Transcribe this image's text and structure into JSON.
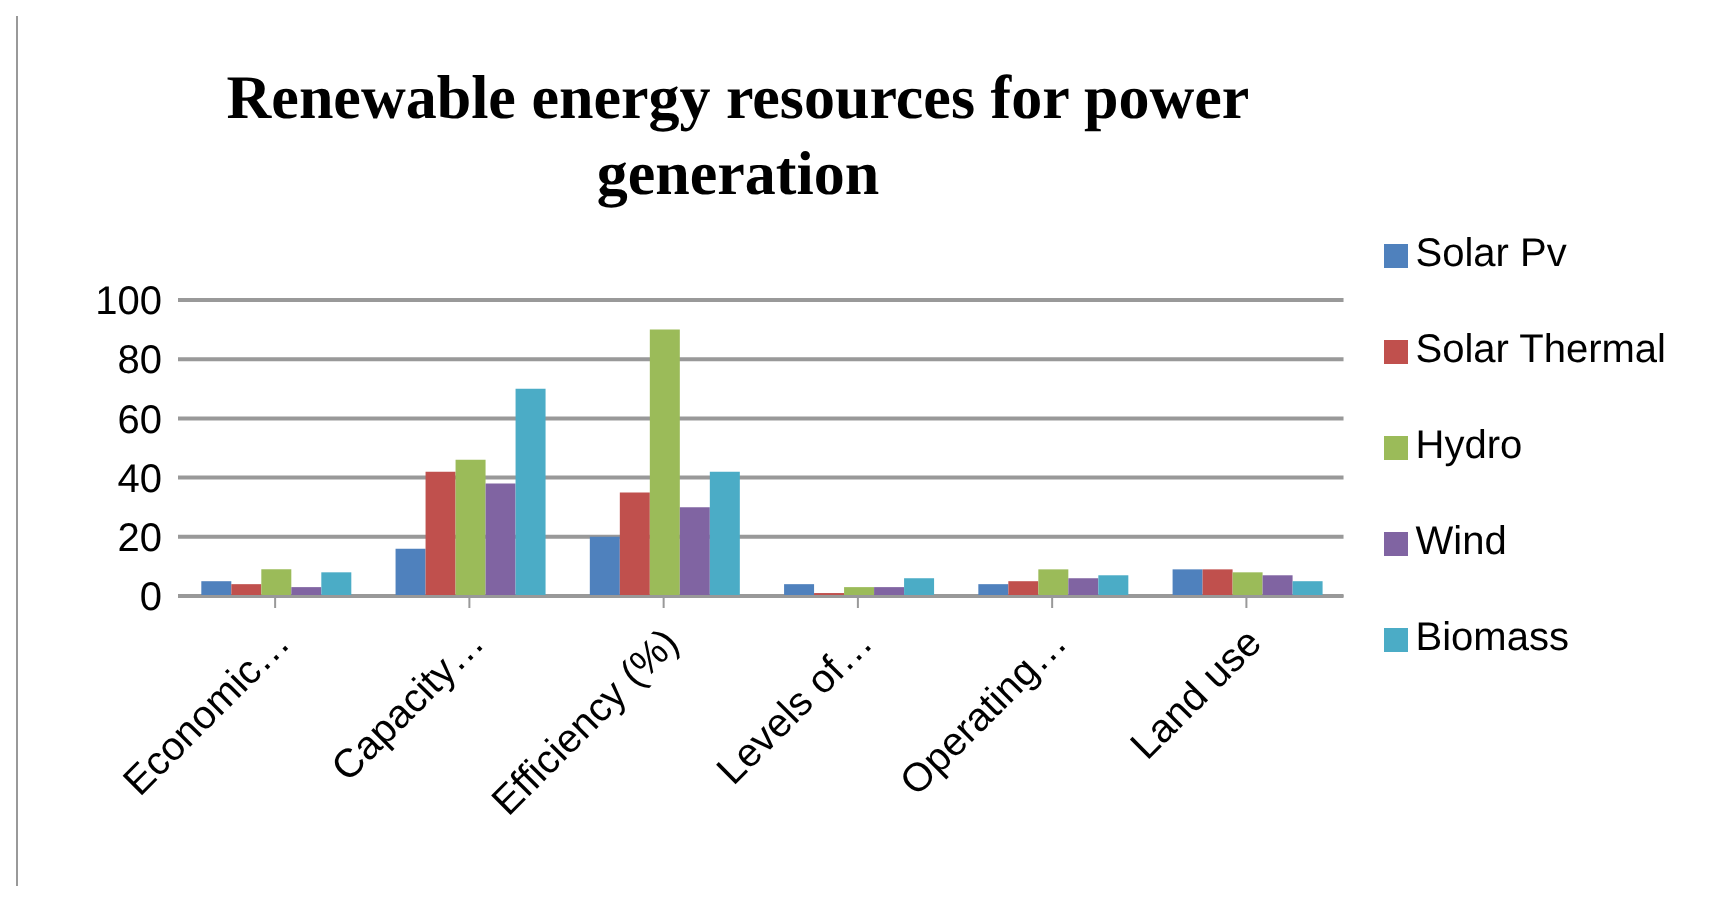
{
  "chart_data": {
    "type": "bar",
    "title": "Renewable energy resources for power generation",
    "categories": [
      "Economic…",
      "Capacity…",
      "Efficiency (%)",
      "Levels of…",
      "Operating…",
      "Land use"
    ],
    "series": [
      {
        "name": "Solar Pv",
        "color": "#4f81bd",
        "values": [
          5,
          16,
          20,
          4,
          4,
          9
        ]
      },
      {
        "name": "Solar Thermal",
        "color": "#c0504d",
        "values": [
          4,
          42,
          35,
          1,
          5,
          9
        ]
      },
      {
        "name": "Hydro",
        "color": "#9bbb59",
        "values": [
          9,
          46,
          90,
          3,
          9,
          8
        ]
      },
      {
        "name": "Wind",
        "color": "#8064a2",
        "values": [
          3,
          38,
          30,
          3,
          6,
          7
        ]
      },
      {
        "name": "Biomass",
        "color": "#4bacc6",
        "values": [
          8,
          70,
          42,
          6,
          7,
          5
        ]
      }
    ],
    "ylim": [
      0,
      100
    ],
    "yticks": [
      0,
      20,
      40,
      60,
      80,
      100
    ],
    "grid": "y",
    "legend": "right"
  }
}
